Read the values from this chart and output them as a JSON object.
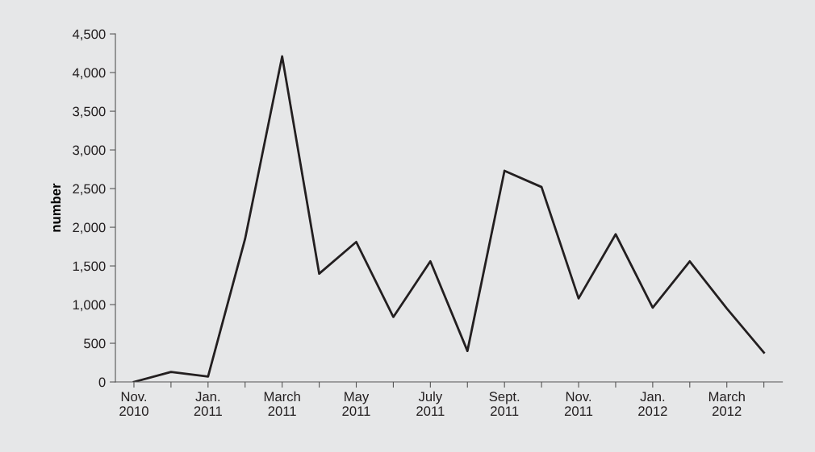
{
  "chart_data": {
    "type": "line",
    "ylabel": "number",
    "categories": [
      "Nov.\n2010",
      null,
      "Jan.\n2011",
      null,
      "March\n2011",
      null,
      "May\n2011",
      null,
      "July\n2011",
      null,
      "Sept.\n2011",
      null,
      "Nov.\n2011",
      null,
      "Jan.\n2012",
      null,
      "March\n2012",
      null
    ],
    "series": [
      {
        "color": "#231f20",
        "values": [
          0,
          130,
          70,
          1850,
          4210,
          1400,
          1810,
          840,
          1560,
          400,
          2730,
          2520,
          1080,
          1910,
          960,
          1560,
          950,
          380
        ]
      }
    ],
    "ylim": [
      0,
      4500
    ],
    "yticks": [
      0,
      500,
      {
        "value": 1000,
        "label": "1,000"
      },
      {
        "value": 1500,
        "label": "1,500"
      },
      {
        "value": 2000,
        "label": "2,000"
      },
      {
        "value": 2500,
        "label": "2,500"
      },
      {
        "value": 3000,
        "label": "3,000"
      },
      {
        "value": 3500,
        "label": "3,500"
      },
      {
        "value": 4000,
        "label": "4,000"
      },
      {
        "value": 4500,
        "label": "4,500"
      }
    ],
    "marker": "none",
    "line_style": "solid"
  }
}
